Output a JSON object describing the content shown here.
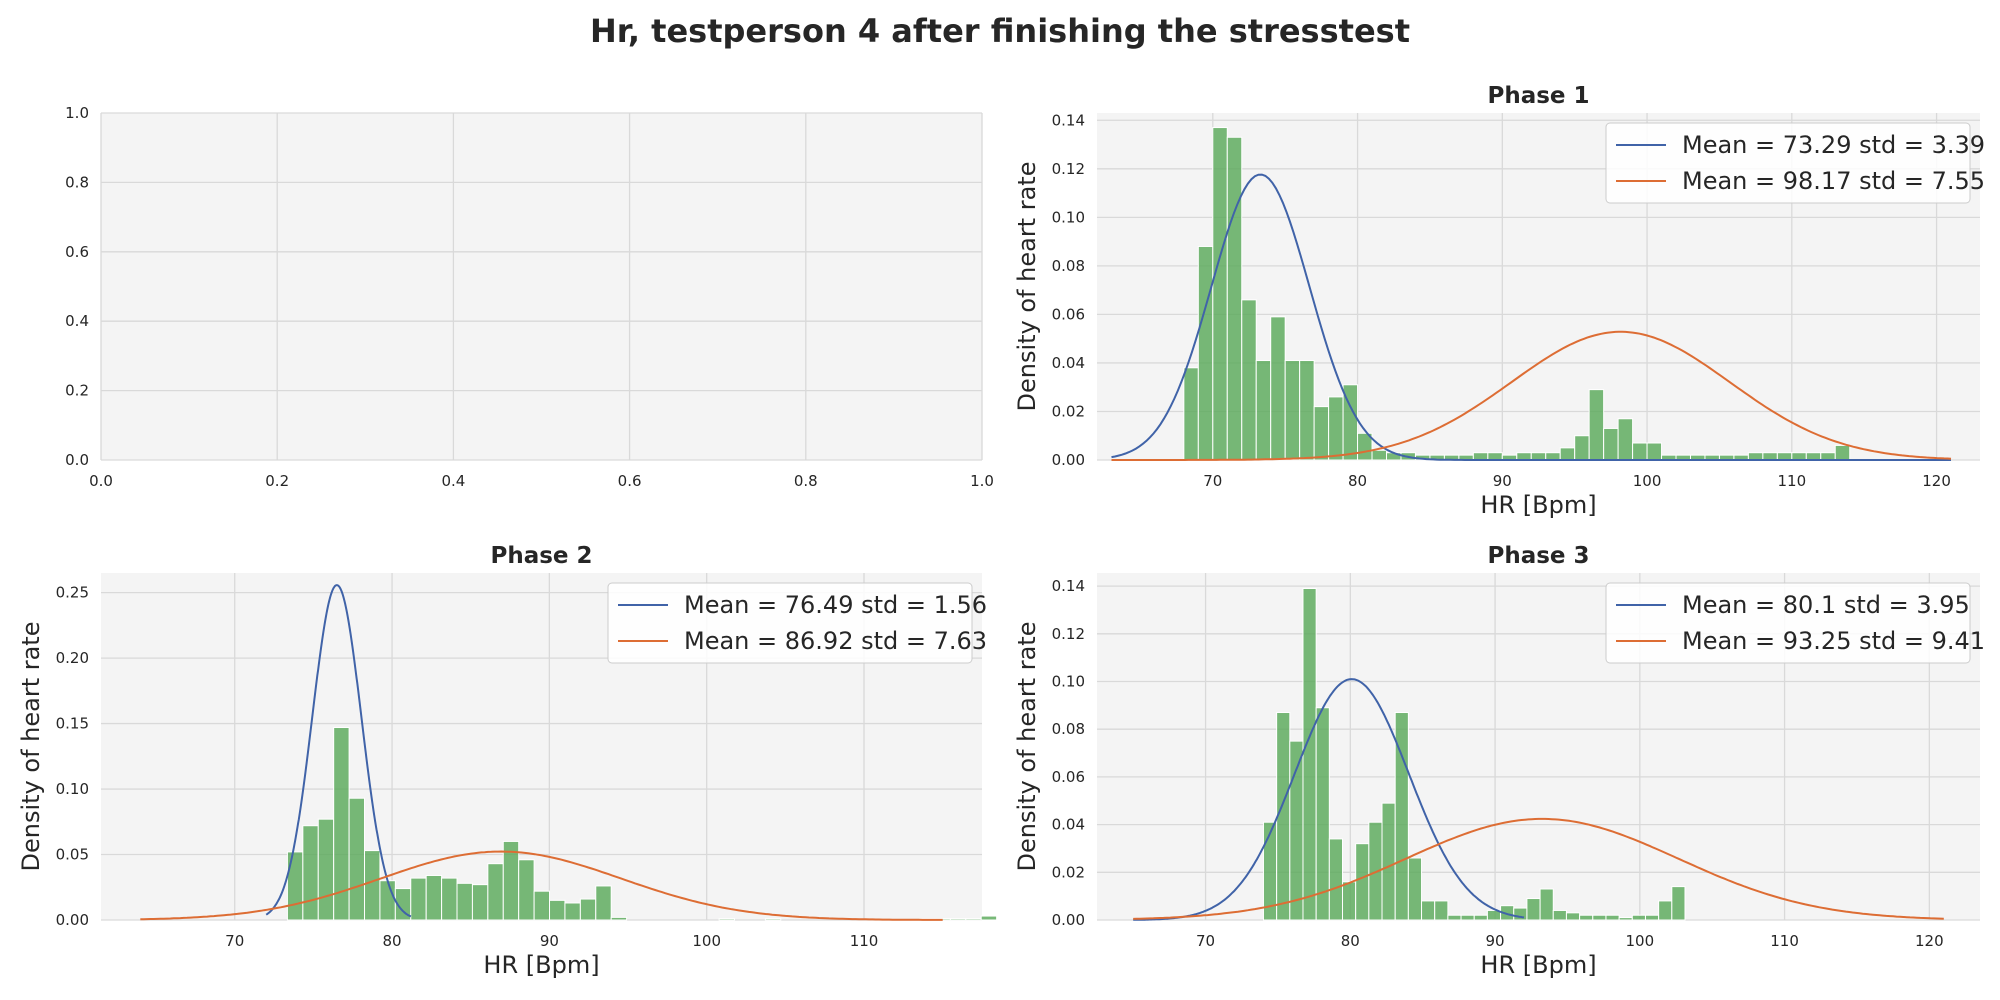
{
  "figure": {
    "title": "Hr, testperson 4 after finishing the stresstest"
  },
  "colors": {
    "panel_bg": "#f4f4f4",
    "grid": "#d9d9d9",
    "bar": "#5aaa5a",
    "bar_edge": "#ffffff",
    "mean_low": "#4063a8",
    "mean_high": "#dd6d34"
  },
  "chart_data": [
    {
      "type": "line",
      "title": "",
      "xlabel": "",
      "ylabel": "",
      "xlim": [
        0,
        1
      ],
      "ylim": [
        0,
        1
      ],
      "xticks": [
        "0.0",
        "0.2",
        "0.4",
        "0.6",
        "0.8",
        "1.0"
      ],
      "yticks": [
        "0.0",
        "0.2",
        "0.4",
        "0.6",
        "0.8",
        "1.0"
      ],
      "xtick_values": [
        0,
        0.2,
        0.4,
        0.6,
        0.8,
        1.0
      ],
      "ytick_values": [
        0,
        0.2,
        0.4,
        0.6,
        0.8,
        1.0
      ],
      "grid": true,
      "series": []
    },
    {
      "type": "bar",
      "title": "Phase 1",
      "xlabel": "HR [Bpm]",
      "ylabel": "Density of heart rate",
      "xlim": [
        62,
        123
      ],
      "ylim": [
        0,
        0.143
      ],
      "xticks": [
        "70",
        "80",
        "90",
        "100",
        "110",
        "120"
      ],
      "xtick_values": [
        70,
        80,
        90,
        100,
        110,
        120
      ],
      "yticks": [
        "0.00",
        "0.02",
        "0.04",
        "0.06",
        "0.08",
        "0.10",
        "0.12",
        "0.14"
      ],
      "ytick_values": [
        0,
        0.02,
        0.04,
        0.06,
        0.08,
        0.1,
        0.12,
        0.14
      ],
      "grid": true,
      "legend_position": "top-right",
      "histogram": {
        "bin_start": 68,
        "bin_width": 1,
        "densities": [
          0.038,
          0.088,
          0.137,
          0.133,
          0.066,
          0.041,
          0.059,
          0.041,
          0.041,
          0.022,
          0.026,
          0.031,
          0.011,
          0.004,
          0.003,
          0.003,
          0.002,
          0.002,
          0.002,
          0.002,
          0.003,
          0.003,
          0.002,
          0.003,
          0.003,
          0.003,
          0.005,
          0.01,
          0.029,
          0.013,
          0.017,
          0.007,
          0.007,
          0.002,
          0.002,
          0.002,
          0.002,
          0.002,
          0.002,
          0.003,
          0.003,
          0.003,
          0.003,
          0.003,
          0.003,
          0.006
        ]
      },
      "series": [
        {
          "name": "Mean = 73.29 std = 3.39",
          "mean": 73.29,
          "std": 3.39,
          "weight": 1.0,
          "x_range": [
            63,
            121
          ],
          "color_key": "mean_low"
        },
        {
          "name": "Mean = 98.17 std = 7.55",
          "mean": 98.17,
          "std": 7.55,
          "weight": 1.0,
          "x_range": [
            63,
            121
          ],
          "color_key": "mean_high"
        }
      ]
    },
    {
      "type": "bar",
      "title": "Phase 2",
      "xlabel": "HR [Bpm]",
      "ylabel": "Density of heart rate",
      "xlim": [
        61.5,
        117.5
      ],
      "ylim": [
        0,
        0.265
      ],
      "xticks": [
        "70",
        "80",
        "90",
        "100",
        "110"
      ],
      "xtick_values": [
        70,
        80,
        90,
        100,
        110
      ],
      "yticks": [
        "0.00",
        "0.05",
        "0.10",
        "0.15",
        "0.20",
        "0.25"
      ],
      "ytick_values": [
        0,
        0.05,
        0.1,
        0.15,
        0.2,
        0.25
      ],
      "grid": true,
      "legend_position": "top-right",
      "histogram": {
        "bin_start": 73.35,
        "bin_width": 0.98,
        "densities": [
          0.052,
          0.072,
          0.077,
          0.147,
          0.093,
          0.053,
          0.03,
          0.024,
          0.032,
          0.034,
          0.032,
          0.028,
          0.027,
          0.043,
          0.06,
          0.046,
          0.022,
          0.015,
          0.013,
          0.016,
          0.026,
          0.002,
          0,
          0,
          0,
          0,
          0,
          0,
          0.001,
          0,
          0,
          0.001,
          0,
          0,
          0,
          0,
          0,
          0,
          0,
          0,
          0,
          0.001,
          0.001,
          0.001,
          0.001,
          0.003
        ]
      },
      "series": [
        {
          "name": "Mean = 76.49 std = 1.56",
          "mean": 76.49,
          "std": 1.56,
          "weight": 1.0,
          "x_range": [
            72,
            81.2
          ],
          "color_key": "mean_low"
        },
        {
          "name": "Mean = 86.92 std = 7.63",
          "mean": 86.92,
          "std": 7.63,
          "weight": 1.0,
          "x_range": [
            64,
            115
          ],
          "color_key": "mean_high"
        }
      ]
    },
    {
      "type": "bar",
      "title": "Phase 3",
      "xlabel": "HR [Bpm]",
      "ylabel": "Density of heart rate",
      "xlim": [
        62.5,
        123.5
      ],
      "ylim": [
        0,
        0.1455
      ],
      "xticks": [
        "70",
        "80",
        "90",
        "100",
        "110",
        "120"
      ],
      "xtick_values": [
        70,
        80,
        90,
        100,
        110,
        120
      ],
      "yticks": [
        "0.00",
        "0.02",
        "0.04",
        "0.06",
        "0.08",
        "0.10",
        "0.12",
        "0.14"
      ],
      "ytick_values": [
        0,
        0.02,
        0.04,
        0.06,
        0.08,
        0.1,
        0.12,
        0.14
      ],
      "grid": true,
      "legend_position": "top-right",
      "histogram": {
        "bin_start": 74,
        "bin_width": 0.91,
        "densities": [
          0.041,
          0.087,
          0.075,
          0.139,
          0.089,
          0.034,
          0.016,
          0.032,
          0.041,
          0.049,
          0.087,
          0.026,
          0.008,
          0.008,
          0.002,
          0.002,
          0.002,
          0.004,
          0.006,
          0.005,
          0.009,
          0.013,
          0.004,
          0.003,
          0.002,
          0.002,
          0.002,
          0.001,
          0.002,
          0.002,
          0.008,
          0.014
        ]
      },
      "series": [
        {
          "name": "Mean = 80.1 std = 3.95",
          "mean": 80.1,
          "std": 3.95,
          "weight": 1.0,
          "x_range": [
            65,
            92
          ],
          "color_key": "mean_low"
        },
        {
          "name": "Mean = 93.25 std = 9.41",
          "mean": 93.25,
          "std": 9.41,
          "weight": 1.0,
          "x_range": [
            65,
            121
          ],
          "color_key": "mean_high"
        }
      ]
    }
  ]
}
